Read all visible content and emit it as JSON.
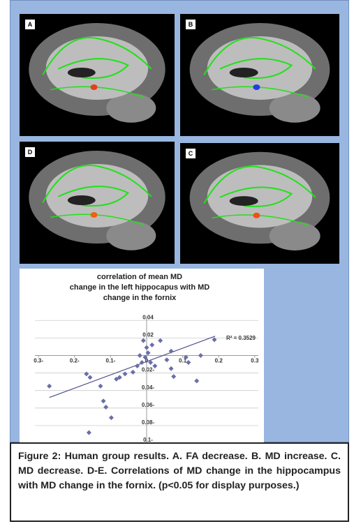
{
  "panels": [
    {
      "label": "A"
    },
    {
      "label": "B"
    },
    {
      "label": "D"
    },
    {
      "label": "C"
    }
  ],
  "chart_data": {
    "type": "scatter",
    "title": [
      "correlation of mean MD",
      "change in the left hippocapus with MD",
      "change in the fornix"
    ],
    "annotation": "R² = 0.3529",
    "x": [
      -0.27,
      -0.167,
      -0.157,
      -0.128,
      -0.12,
      -0.113,
      -0.098,
      -0.16,
      -0.084,
      -0.075,
      -0.06,
      -0.038,
      -0.026,
      -0.013,
      -0.004,
      0.004,
      -0.009,
      0,
      0.015,
      0.011,
      0.023,
      0.056,
      0.068,
      0.068,
      0.075,
      0.109,
      0.116,
      0.139,
      0.15,
      -0.019,
      0.188,
      0.038
    ],
    "values": [
      -0.035,
      -0.021,
      -0.025,
      -0.035,
      -0.052,
      -0.059,
      -0.071,
      -0.088,
      -0.027,
      -0.025,
      -0.021,
      -0.019,
      -0.012,
      -0.008,
      -0.002,
      0.003,
      0.017,
      0.009,
      0.012,
      -0.008,
      -0.012,
      -0.005,
      0.005,
      -0.015,
      -0.024,
      -0.002,
      -0.008,
      -0.029,
      0,
      0,
      0.018,
      0.017
    ],
    "color": "#6a6fa8",
    "trendline": {
      "x": [
        -0.27,
        0.19
      ],
      "y": [
        -0.048,
        0.022
      ],
      "color": "#50508a"
    },
    "xlim": [
      -0.31,
      0.31
    ],
    "ylim": [
      -0.1,
      0.045
    ],
    "xticks": [
      {
        "value": -0.3,
        "label": "0.3-"
      },
      {
        "value": -0.2,
        "label": "0.2-"
      },
      {
        "value": -0.1,
        "label": "0.1-"
      },
      0,
      0.1,
      0.2,
      0.3
    ],
    "yticks": [
      0.04,
      0.02,
      {
        "value": -0.02,
        "label": "0.02-"
      },
      {
        "value": -0.04,
        "label": "0.04-"
      },
      {
        "value": -0.06,
        "label": "0.06-"
      },
      {
        "value": -0.08,
        "label": "0.08-"
      },
      {
        "value": -0.1,
        "label": "0.1-"
      }
    ],
    "grid": true
  },
  "caption": "Figure 2: Human group results.  A. FA decrease. B. MD increase. C. MD decrease. D-E. Correlations of MD change in the hippocampus with MD change in the fornix. (p<0.05 for display purposes.)"
}
